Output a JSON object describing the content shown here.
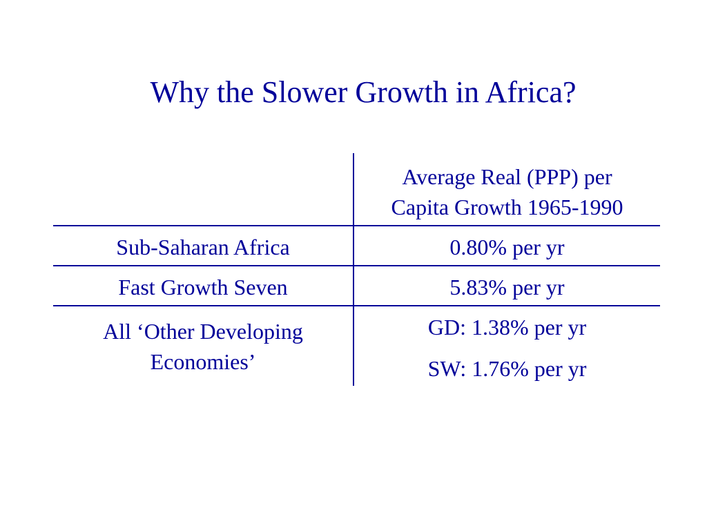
{
  "slide": {
    "title": "Why the Slower Growth in Africa?"
  },
  "table": {
    "header": {
      "left": "",
      "right_line1": "Average Real (PPP) per",
      "right_line2": "Capita Growth 1965-1990"
    },
    "rows": [
      {
        "label": "Sub-Saharan Africa",
        "value": "0.80% per yr"
      },
      {
        "label": "Fast Growth Seven",
        "value": "5.83% per yr"
      },
      {
        "label_line1": "All ‘Other Developing",
        "label_line2": "Economies’",
        "value_line1": "GD: 1.38% per yr",
        "value_line2": "SW: 1.76% per yr"
      }
    ]
  },
  "colors": {
    "text": "#000099",
    "background": "#ffffff",
    "rules": "#000099"
  }
}
